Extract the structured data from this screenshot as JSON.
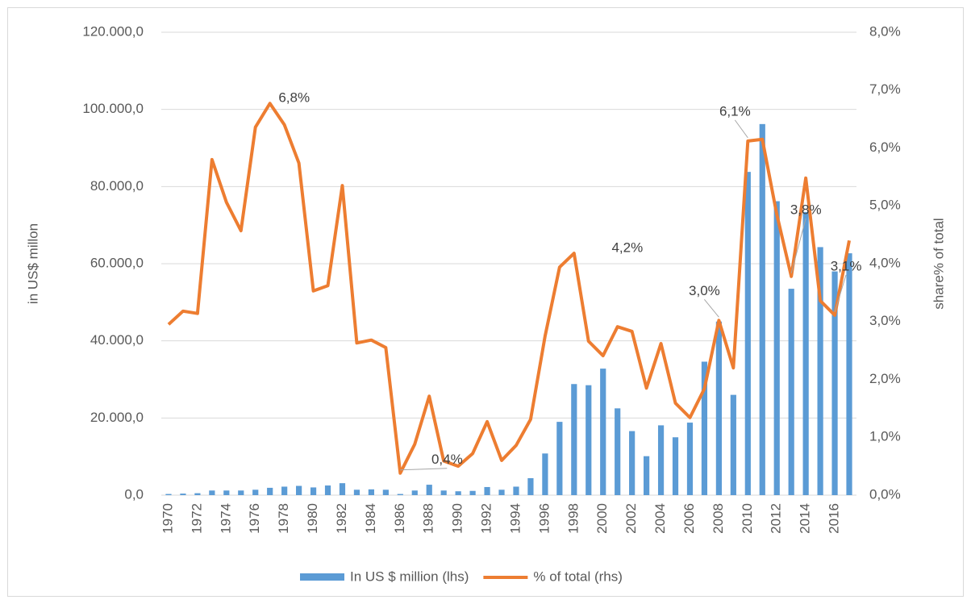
{
  "chart_data": {
    "type": "bar-line",
    "categories": [
      "1970",
      null,
      "1972",
      null,
      "1974",
      null,
      "1976",
      null,
      "1978",
      null,
      "1980",
      null,
      "1982",
      null,
      "1984",
      null,
      "1986",
      null,
      "1988",
      null,
      "1990",
      null,
      "1992",
      null,
      "1994",
      null,
      "1996",
      null,
      "1998",
      null,
      "2000",
      null,
      "2002",
      null,
      "2004",
      null,
      "2006",
      null,
      "2008",
      null,
      "2010",
      null,
      "2012",
      null,
      "2014",
      null,
      "2016",
      null
    ],
    "series": [
      {
        "name": "In US $ million (lhs)",
        "type": "bar",
        "color": "#5b9bd5",
        "axis": "y",
        "values": [
          300,
          400,
          500,
          1200,
          1200,
          1200,
          1400,
          1900,
          2200,
          2400,
          2000,
          2500,
          3100,
          1400,
          1500,
          1400,
          300,
          1200,
          2700,
          1200,
          1000,
          1100,
          2100,
          1400,
          2200,
          4400,
          10800,
          19000,
          28800,
          28500,
          32800,
          22500,
          16600,
          10100,
          18100,
          15000,
          18800,
          34600,
          45000,
          26000,
          83800,
          96200,
          76200,
          53500,
          73400,
          64300,
          58000,
          62700
        ]
      },
      {
        "name": "% of total (rhs)",
        "type": "line",
        "color": "#ed7d31",
        "axis": "y2",
        "values": [
          2.95,
          3.18,
          3.14,
          5.8,
          5.06,
          4.57,
          6.36,
          6.77,
          6.4,
          5.74,
          3.53,
          3.62,
          5.35,
          2.63,
          2.68,
          2.55,
          0.38,
          0.88,
          1.71,
          0.59,
          0.5,
          0.72,
          1.27,
          0.6,
          0.86,
          1.31,
          2.75,
          3.94,
          4.18,
          2.66,
          2.41,
          2.91,
          2.83,
          1.85,
          2.62,
          1.59,
          1.34,
          1.84,
          3.02,
          2.2,
          6.12,
          6.15,
          4.85,
          3.78,
          5.48,
          3.36,
          3.11,
          4.4
        ],
        "value_labels": [
          null,
          null,
          null,
          null,
          null,
          null,
          null,
          "6,8%",
          null,
          null,
          null,
          null,
          null,
          null,
          null,
          null,
          "0,4%",
          null,
          null,
          null,
          null,
          null,
          null,
          null,
          null,
          null,
          null,
          null,
          "4,2%",
          null,
          null,
          null,
          null,
          null,
          null,
          null,
          null,
          null,
          "3,0%",
          null,
          "6,1%",
          null,
          null,
          "3,8%",
          null,
          null,
          "3,1%",
          null
        ]
      }
    ],
    "ylabel": "in  US$ millon",
    "y2label": "share% of total",
    "ylim": [
      0,
      120000
    ],
    "yticks": [
      {
        "value": 0,
        "label": "0,0"
      },
      {
        "value": 20000,
        "label": "20.000,0"
      },
      {
        "value": 40000,
        "label": "40.000,0"
      },
      {
        "value": 60000,
        "label": "60.000,0"
      },
      {
        "value": 80000,
        "label": "80.000,0"
      },
      {
        "value": 100000,
        "label": "100.000,0"
      },
      {
        "value": 120000,
        "label": "120.000,0"
      }
    ],
    "y2lim": [
      0,
      8
    ],
    "y2ticks": [
      {
        "value": 0,
        "label": "0,0%"
      },
      {
        "value": 1,
        "label": "1,0%"
      },
      {
        "value": 2,
        "label": "2,0%"
      },
      {
        "value": 3,
        "label": "3,0%"
      },
      {
        "value": 4,
        "label": "4,0%"
      },
      {
        "value": 5,
        "label": "5,0%"
      },
      {
        "value": 6,
        "label": "6,0%"
      },
      {
        "value": 7,
        "label": "7,0%"
      },
      {
        "value": 8,
        "label": "8,0%"
      }
    ],
    "grid": true,
    "legend": "bottom"
  }
}
